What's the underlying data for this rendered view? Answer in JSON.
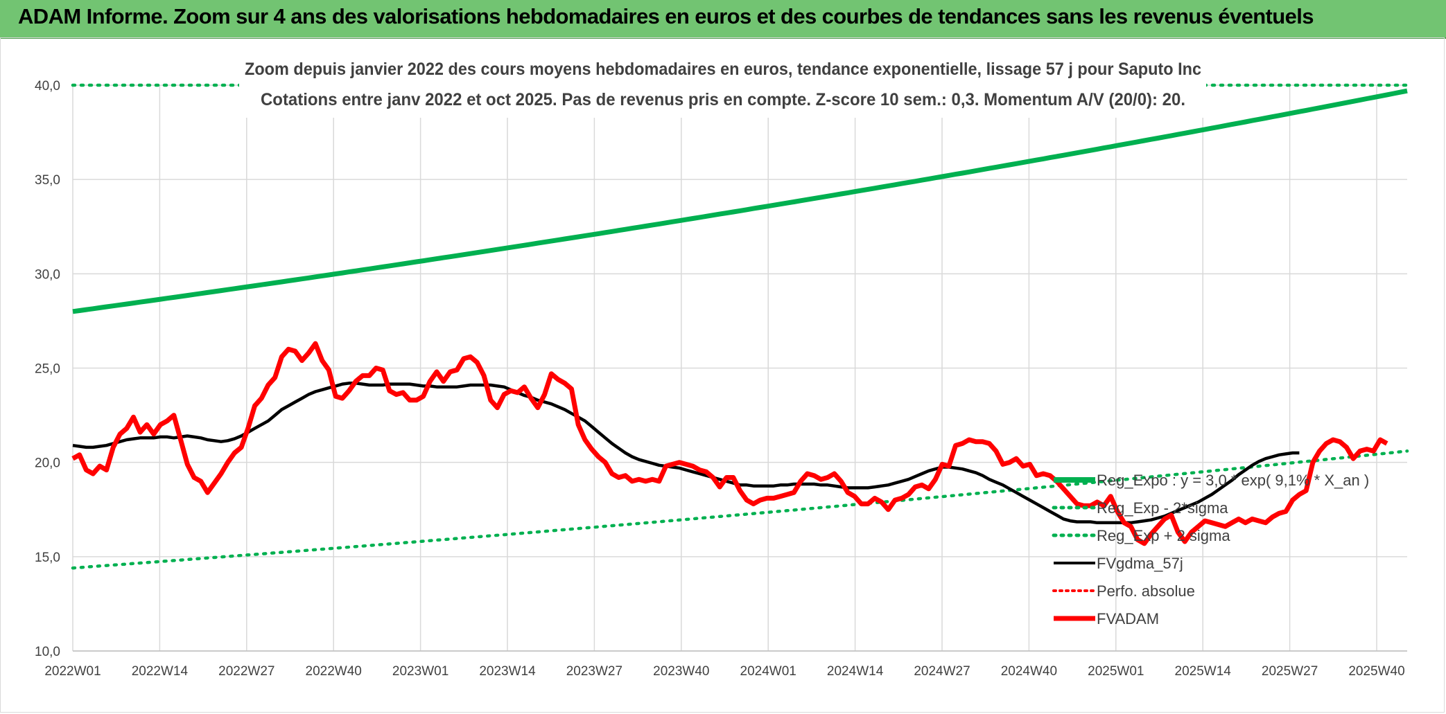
{
  "banner": {
    "title": "ADAM Informe. Zoom sur 4 ans des valorisations hebdomadaires en euros et des courbes de tendances sans les revenus éventuels"
  },
  "colors": {
    "banner_bg": "#72c472",
    "trend": "#00b050",
    "smooth": "#000000",
    "price": "#ff0000",
    "grid": "#d9d9d9",
    "axis_text": "#404040"
  },
  "chart_data": {
    "type": "line",
    "title": "Zoom depuis janvier 2022 des cours moyens hebdomadaires en euros, tendance exponentielle, lissage 57 j pour Saputo Inc",
    "subtitle": "Cotations entre janv 2022 et oct 2025. Pas de revenus pris en compte. Z-score 10 sem.: 0,3. Momentum A/V (20/0): 20.",
    "xlabel": "",
    "ylabel": "",
    "ylim": [
      10,
      40
    ],
    "yticks": [
      "10,0",
      "15,0",
      "20,0",
      "25,0",
      "30,0",
      "35,0",
      "40,0"
    ],
    "xticks": [
      "2022W01",
      "2022W14",
      "2022W27",
      "2022W40",
      "2023W01",
      "2023W14",
      "2023W27",
      "2023W40",
      "2024W01",
      "2024W14",
      "2024W27",
      "2024W40",
      "2025W01",
      "2025W14",
      "2025W27",
      "2025W40"
    ],
    "grid": true,
    "legend_position": "right",
    "series": [
      {
        "name": "Reg_Expo : y = 3,0 * exp( 9,1% * X_an )",
        "style": "solid",
        "values_start": 28.0,
        "values_end": 39.7
      },
      {
        "name": "Reg_Exp - 2*sigma",
        "style": "dotted",
        "values_start": 14.4,
        "values_end": 20.6
      },
      {
        "name": "Reg_Exp + 2 sigma",
        "style": "dotted",
        "values_start": 40.0,
        "values_end": 40.0
      },
      {
        "name": "FVgdma_57j",
        "style": "solid",
        "values": [
          20.9,
          20.85,
          20.8,
          20.8,
          20.85,
          20.9,
          21.0,
          21.1,
          21.2,
          21.25,
          21.3,
          21.3,
          21.3,
          21.35,
          21.35,
          21.3,
          21.35,
          21.4,
          21.35,
          21.3,
          21.2,
          21.15,
          21.1,
          21.15,
          21.25,
          21.4,
          21.6,
          21.8,
          22.0,
          22.2,
          22.5,
          22.8,
          23.0,
          23.2,
          23.4,
          23.6,
          23.75,
          23.85,
          23.95,
          24.05,
          24.15,
          24.2,
          24.2,
          24.15,
          24.1,
          24.1,
          24.1,
          24.15,
          24.15,
          24.15,
          24.15,
          24.1,
          24.05,
          24.05,
          24.0,
          24.0,
          24.0,
          24.0,
          24.05,
          24.1,
          24.1,
          24.1,
          24.1,
          24.05,
          24.0,
          23.85,
          23.7,
          23.55,
          23.45,
          23.3,
          23.2,
          23.1,
          22.95,
          22.8,
          22.6,
          22.4,
          22.2,
          21.9,
          21.6,
          21.3,
          21.0,
          20.75,
          20.5,
          20.3,
          20.15,
          20.05,
          19.95,
          19.85,
          19.8,
          19.75,
          19.7,
          19.6,
          19.5,
          19.4,
          19.3,
          19.2,
          19.1,
          19.0,
          18.9,
          18.8,
          18.8,
          18.75,
          18.75,
          18.75,
          18.75,
          18.8,
          18.8,
          18.85,
          18.85,
          18.85,
          18.85,
          18.8,
          18.8,
          18.75,
          18.7,
          18.65,
          18.65,
          18.65,
          18.65,
          18.7,
          18.75,
          18.8,
          18.9,
          19.0,
          19.1,
          19.25,
          19.4,
          19.55,
          19.65,
          19.75,
          19.75,
          19.7,
          19.65,
          19.55,
          19.45,
          19.3,
          19.1,
          18.95,
          18.8,
          18.6,
          18.4,
          18.2,
          18.0,
          17.8,
          17.6,
          17.4,
          17.2,
          17.0,
          16.9,
          16.85,
          16.85,
          16.85,
          16.8,
          16.8,
          16.8,
          16.8,
          16.8,
          16.8,
          16.85,
          16.9,
          16.95,
          17.05,
          17.15,
          17.3,
          17.45,
          17.6,
          17.75,
          17.9,
          18.1,
          18.3,
          18.55,
          18.8,
          19.05,
          19.35,
          19.6,
          19.85,
          20.05,
          20.2,
          20.3,
          20.4,
          20.45,
          20.5,
          20.5
        ]
      },
      {
        "name": "Perfo. absolue",
        "style": "dotted",
        "values": []
      },
      {
        "name": "FVADAM",
        "style": "solid",
        "values": [
          20.2,
          20.4,
          19.6,
          19.4,
          19.8,
          19.6,
          20.8,
          21.5,
          21.8,
          22.4,
          21.6,
          22.0,
          21.5,
          22.0,
          22.2,
          22.5,
          21.2,
          19.9,
          19.2,
          19.0,
          18.4,
          18.9,
          19.4,
          20.0,
          20.5,
          20.8,
          21.8,
          23.0,
          23.4,
          24.1,
          24.5,
          25.6,
          26.0,
          25.9,
          25.4,
          25.8,
          26.3,
          25.4,
          24.9,
          23.5,
          23.4,
          23.8,
          24.3,
          24.6,
          24.6,
          25.0,
          24.9,
          23.8,
          23.6,
          23.7,
          23.3,
          23.3,
          23.5,
          24.3,
          24.8,
          24.3,
          24.8,
          24.9,
          25.5,
          25.6,
          25.3,
          24.6,
          23.3,
          22.9,
          23.6,
          23.8,
          23.7,
          24.0,
          23.4,
          22.9,
          23.6,
          24.7,
          24.4,
          24.2,
          23.9,
          22.0,
          21.2,
          20.7,
          20.3,
          20.0,
          19.4,
          19.2,
          19.3,
          19.0,
          19.1,
          19.0,
          19.1,
          19.0,
          19.8,
          19.9,
          20.0,
          19.9,
          19.8,
          19.6,
          19.5,
          19.2,
          18.7,
          19.2,
          19.2,
          18.5,
          18.0,
          17.8,
          18.0,
          18.1,
          18.1,
          18.2,
          18.3,
          18.4,
          19.0,
          19.4,
          19.3,
          19.1,
          19.2,
          19.4,
          19.0,
          18.4,
          18.2,
          17.8,
          17.8,
          18.1,
          17.9,
          17.5,
          18.0,
          18.1,
          18.3,
          18.7,
          18.8,
          18.6,
          19.1,
          19.9,
          19.8,
          20.9,
          21.0,
          21.2,
          21.1,
          21.1,
          21.0,
          20.6,
          19.9,
          20.0,
          20.2,
          19.8,
          19.9,
          19.3,
          19.4,
          19.3,
          19.0,
          18.6,
          18.2,
          17.8,
          17.7,
          17.7,
          17.9,
          17.7,
          18.2,
          17.4,
          16.8,
          16.6,
          15.9,
          15.7,
          16.2,
          16.6,
          17.0,
          17.2,
          16.3,
          15.8,
          16.3,
          16.6,
          16.9,
          16.8,
          16.7,
          16.6,
          16.8,
          17.0,
          16.8,
          17.0,
          16.9,
          16.8,
          17.1,
          17.3,
          17.4,
          18.0,
          18.3,
          18.5,
          20.0,
          20.6,
          21.0,
          21.2,
          21.1,
          20.8,
          20.2,
          20.6,
          20.7,
          20.6,
          21.2,
          21.0
        ]
      }
    ]
  }
}
